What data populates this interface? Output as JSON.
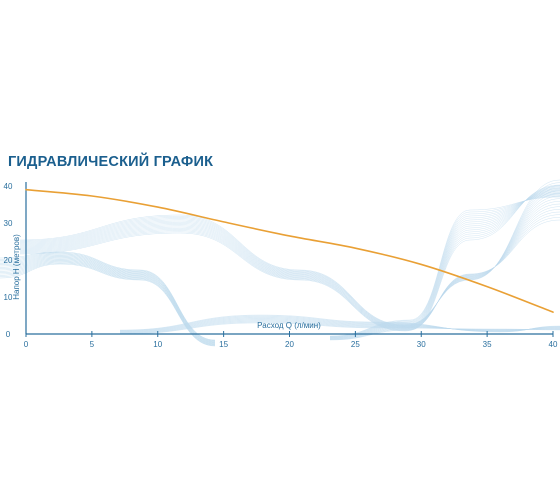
{
  "title": "ГИДРАВЛИЧЕСКИЙ ГРАФИК",
  "colors": {
    "title": "#1b5f8e",
    "axis": "#2a6f9e",
    "curve": "#e9a035",
    "wave": "#bcd9ec"
  },
  "chart_data": {
    "type": "line",
    "title": "ГИДРАВЛИЧЕСКИЙ ГРАФИК",
    "xlabel": "Расход Q (л/мин)",
    "ylabel": "Напор H (метров)",
    "xlim": [
      0,
      40
    ],
    "ylim": [
      0,
      40
    ],
    "x_ticks": [
      0,
      5,
      10,
      15,
      20,
      25,
      30,
      35,
      40
    ],
    "y_ticks": [
      0,
      10,
      20,
      30,
      40
    ],
    "grid": false,
    "legend": "none",
    "series": [
      {
        "x": [
          0,
          5,
          10,
          15,
          20,
          25,
          30,
          35,
          40
        ],
        "y": [
          39,
          37.3,
          34.3,
          30.3,
          26.5,
          23.2,
          18.8,
          12.8,
          5.9
        ]
      }
    ]
  }
}
